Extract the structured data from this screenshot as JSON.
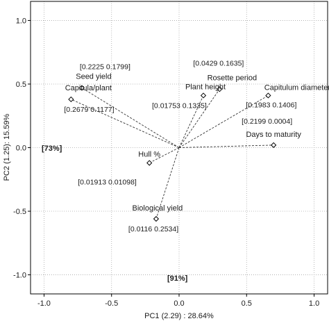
{
  "chart_data": {
    "type": "scatter",
    "title": "",
    "xlabel": "PC1 (2.29) : 28.64%",
    "ylabel": "PC2 (1.25): 15.59%",
    "xlim": [
      -1.1,
      1.1
    ],
    "ylim": [
      -1.15,
      1.15
    ],
    "xticks": [
      "-1.0",
      "-0.5",
      "0.0",
      "0.5",
      "1.0"
    ],
    "yticks": [
      "1.0",
      "0.5",
      "0.0",
      "-0.5",
      "-1.0"
    ],
    "grid": true,
    "points": [
      {
        "label": "Seed yield",
        "x": -0.72,
        "y": 0.47,
        "coords": "[0.2225   0.1799]"
      },
      {
        "label": "Capitula/plant",
        "x": -0.8,
        "y": 0.38,
        "coords": "[0.2679   0.1177]"
      },
      {
        "label": "Rosette period",
        "x": 0.3,
        "y": 0.46,
        "coords": "[0.0429   0.1635]"
      },
      {
        "label": "Plant height",
        "x": 0.18,
        "y": 0.41,
        "coords": "[0.01753   0.1335]"
      },
      {
        "label": "Capitulum diameter",
        "x": 0.66,
        "y": 0.41,
        "coords": "[0.1983   0.1406]"
      },
      {
        "label": "Days to maturity",
        "x": 0.7,
        "y": 0.02,
        "coords": "[0.2199   0.0004]"
      },
      {
        "label": "Hull %",
        "x": -0.22,
        "y": -0.12,
        "coords": "[0.01913   0.01098]"
      },
      {
        "label": "Biological yield",
        "x": -0.17,
        "y": -0.56,
        "coords": "[0.0116   0.2534]"
      }
    ],
    "annotations": [
      "[73%]",
      "[91%]"
    ]
  }
}
